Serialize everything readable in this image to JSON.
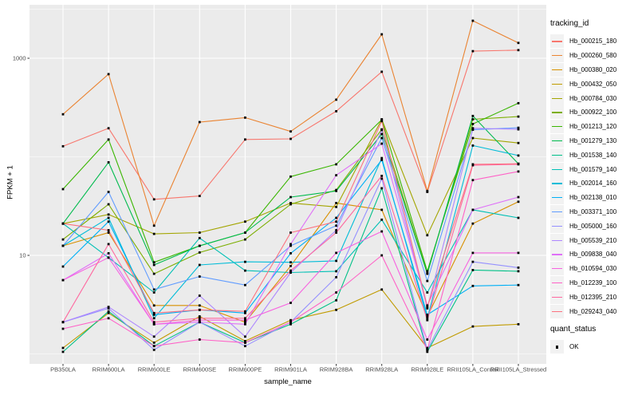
{
  "figure": {
    "panel_bg": "#EBEBEB",
    "grid_color": "#FFFFFF",
    "tick_color": "#333333",
    "tick_label_color": "#4D4D4D",
    "point_color": "#000000"
  },
  "axes": {
    "x_title": "sample_name",
    "y_title": "FPKM + 1",
    "y_ticks": [
      {
        "value": 10,
        "label": "10"
      },
      {
        "value": 1000,
        "label": "1000"
      }
    ],
    "y_minor": [
      1,
      100,
      3162
    ]
  },
  "legend": {
    "title": "tracking_id"
  },
  "legend2": {
    "title": "quant_status",
    "items": [
      {
        "label": "OK"
      }
    ]
  },
  "chart_data": {
    "type": "line",
    "title": "",
    "xlabel": "sample_name",
    "ylabel": "FPKM + 1",
    "y_scale": "log10",
    "ylim": [
      0.8,
      3500
    ],
    "grid": true,
    "legend_position": "right",
    "point_marker": {
      "shape": "square",
      "color": "#000000",
      "meaning": "quant_status OK"
    },
    "categories": [
      "PB350LA",
      "RRIM600LA",
      "RRIM600LE",
      "RRIM600SE",
      "RRIM600PE",
      "RRIM901LA",
      "RRIM928BA",
      "RRIM928LA",
      "RRIM928LE",
      "RRII105LA_Control",
      "RRII105LA_Stressed"
    ],
    "series": [
      {
        "name": "Hb_000215_180",
        "color": "#F8766D",
        "values": [
          128,
          195,
          37,
          40,
          150,
          152,
          290,
          730,
          44,
          1180,
          1210
        ]
      },
      {
        "name": "Hb_000260_580",
        "color": "#EA8331",
        "values": [
          270,
          690,
          20,
          225,
          250,
          181,
          380,
          1750,
          45,
          2400,
          1430
        ]
      },
      {
        "name": "Hb_000380_020",
        "color": "#D89000",
        "values": [
          12.5,
          17,
          3.1,
          3.1,
          2.1,
          7.8,
          34,
          29,
          2.4,
          21,
          35
        ]
      },
      {
        "name": "Hb_000432_050",
        "color": "#C09B00",
        "values": [
          1.15,
          2.6,
          1.3,
          2.4,
          1.35,
          2.2,
          2.8,
          4.5,
          1.15,
          1.9,
          2.0
        ]
      },
      {
        "name": "Hb_000784_030",
        "color": "#A3A500",
        "values": [
          21,
          26,
          16.5,
          17,
          22,
          34,
          31,
          240,
          16,
          155,
          138
        ]
      },
      {
        "name": "Hb_000922_100",
        "color": "#7CAE00",
        "values": [
          14.5,
          33,
          6.5,
          10.7,
          14.5,
          33,
          46,
          190,
          6.6,
          240,
          256
        ]
      },
      {
        "name": "Hb_001213_120",
        "color": "#39B600",
        "values": [
          47,
          150,
          8.5,
          12.5,
          17,
          63,
          84,
          238,
          6.9,
          215,
          350
        ]
      },
      {
        "name": "Hb_001279_130",
        "color": "#00BB4E",
        "values": [
          21,
          88,
          8,
          12.5,
          17,
          39,
          45,
          170,
          6.5,
          260,
          85
        ]
      },
      {
        "name": "Hb_001538_140",
        "color": "#00C087",
        "values": [
          1.05,
          2.7,
          1.2,
          2.1,
          1.3,
          2.0,
          3.5,
          48,
          1.05,
          7.1,
          6.9
        ]
      },
      {
        "name": "Hb_001579_140",
        "color": "#00C0B5",
        "values": [
          21,
          9.5,
          4.2,
          15,
          7.0,
          6.7,
          6.9,
          23,
          4.2,
          29,
          24
        ]
      },
      {
        "name": "Hb_002014_160",
        "color": "#00BCD8",
        "values": [
          12.5,
          24,
          2.3,
          8.0,
          8.6,
          8.5,
          8.8,
          97,
          2.3,
          130,
          103
        ]
      },
      {
        "name": "Hb_002138_010",
        "color": "#00B0F6",
        "values": [
          7.7,
          22,
          2.5,
          2.8,
          2.6,
          10.5,
          24,
          93,
          2.5,
          4.9,
          5.0
        ]
      },
      {
        "name": "Hb_003371_100",
        "color": "#619CFF",
        "values": [
          12.5,
          44,
          4.5,
          6.1,
          5.0,
          12.5,
          20,
          155,
          5.5,
          188,
          197
        ]
      },
      {
        "name": "Hb_005000_160",
        "color": "#9590FF",
        "values": [
          2.1,
          2.9,
          1.1,
          2.1,
          1.2,
          2.1,
          6.0,
          60,
          1.1,
          8.6,
          7.5
        ]
      },
      {
        "name": "Hb_005539_210",
        "color": "#AE87FF",
        "values": [
          2.1,
          3.0,
          1.5,
          3.9,
          1.5,
          6.7,
          18,
          187,
          2.9,
          195,
          190
        ]
      },
      {
        "name": "Hb_009838_040",
        "color": "#DF70F8",
        "values": [
          5.6,
          10.5,
          2.0,
          2.1,
          2.0,
          13,
          65,
          136,
          3.1,
          29,
          39
        ]
      },
      {
        "name": "Hb_010594_030",
        "color": "#F763E0",
        "values": [
          5.6,
          9.5,
          2.0,
          2.2,
          2.2,
          3.3,
          10.6,
          17.5,
          1.4,
          10.6,
          10.6
        ]
      },
      {
        "name": "Hb_012239_100",
        "color": "#FF61C7",
        "values": [
          1.8,
          2.3,
          1.2,
          1.4,
          1.3,
          2.1,
          4.2,
          10,
          1.1,
          58,
          71
        ]
      },
      {
        "name": "Hb_012395_210",
        "color": "#FF689F",
        "values": [
          2.1,
          13,
          2.1,
          2.3,
          2.3,
          7.0,
          17,
          64,
          2.2,
          82,
          84
        ]
      },
      {
        "name": "Hb_029243_040",
        "color": "#FC717F",
        "values": [
          21,
          18,
          2.6,
          2.8,
          2.7,
          17,
          22,
          230,
          3.0,
          84,
          85
        ]
      }
    ]
  }
}
